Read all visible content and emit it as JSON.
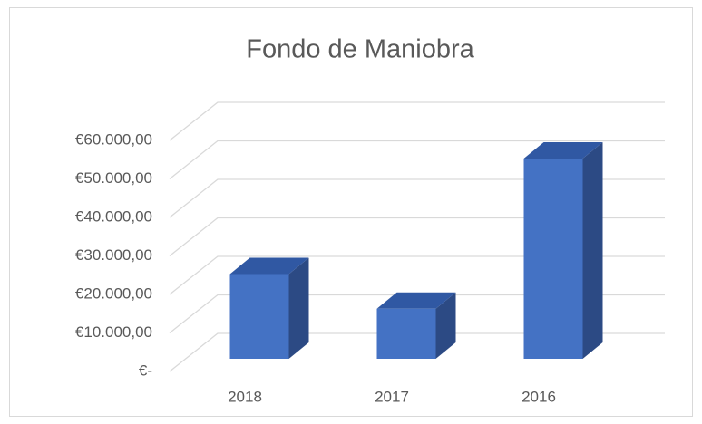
{
  "chart_data": {
    "type": "bar3d",
    "title": "Fondo de Maniobra",
    "categories": [
      "2018",
      "2017",
      "2016"
    ],
    "values": [
      22000,
      13000,
      52000
    ],
    "color": "#4472c4",
    "ylim": [
      0,
      60000
    ],
    "yticks": [
      {
        "value": 0,
        "label": "€-"
      },
      {
        "value": 10000,
        "label": "€10.000,00"
      },
      {
        "value": 20000,
        "label": "€20.000,00"
      },
      {
        "value": 30000,
        "label": "€30.000,00"
      },
      {
        "value": 40000,
        "label": "€40.000,00"
      },
      {
        "value": 50000,
        "label": "€50.000,00"
      },
      {
        "value": 60000,
        "label": "€60.000,00"
      }
    ],
    "grid": true
  }
}
